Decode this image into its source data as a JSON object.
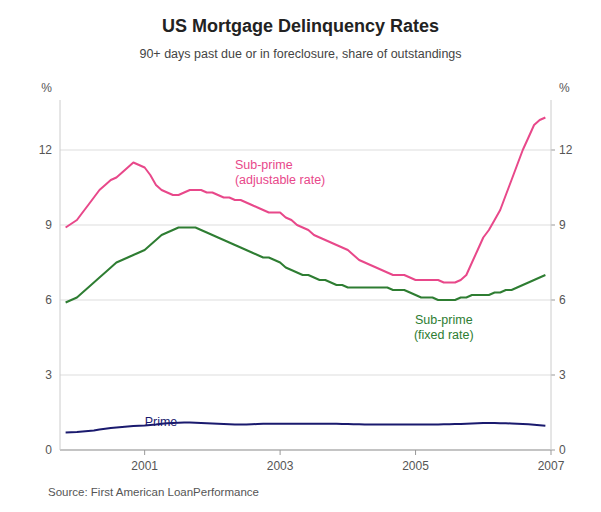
{
  "chart_data": {
    "type": "line",
    "title": "US Mortgage Delinquency Rates",
    "subtitle": "90+ days past due or in foreclosure, share of outstandings",
    "source": "Source: First American LoanPerformance",
    "ylabel": "%",
    "y2label": "%",
    "xlim": [
      1999.75,
      2007.0
    ],
    "xticks": [
      2001,
      2003,
      2005,
      2007
    ],
    "ylim": [
      0,
      14
    ],
    "yticks": [
      0,
      3,
      6,
      9,
      12
    ],
    "y2lim": [
      0,
      14
    ],
    "y2ticks": [
      0,
      3,
      6,
      9,
      12
    ],
    "grid": true,
    "x": [
      1999.833,
      2000.0,
      2000.083,
      2000.167,
      2000.25,
      2000.333,
      2000.417,
      2000.5,
      2000.583,
      2000.667,
      2000.75,
      2000.833,
      2000.917,
      2001.0,
      2001.083,
      2001.167,
      2001.25,
      2001.333,
      2001.417,
      2001.5,
      2001.583,
      2001.667,
      2001.75,
      2001.833,
      2001.917,
      2002.0,
      2002.083,
      2002.167,
      2002.25,
      2002.333,
      2002.417,
      2002.5,
      2002.583,
      2002.667,
      2002.75,
      2002.833,
      2002.917,
      2003.0,
      2003.083,
      2003.167,
      2003.25,
      2003.333,
      2003.417,
      2003.5,
      2003.583,
      2003.667,
      2003.75,
      2003.833,
      2003.917,
      2004.0,
      2004.083,
      2004.167,
      2004.25,
      2004.333,
      2004.417,
      2004.5,
      2004.583,
      2004.667,
      2004.75,
      2004.833,
      2004.917,
      2005.0,
      2005.083,
      2005.167,
      2005.25,
      2005.333,
      2005.417,
      2005.5,
      2005.583,
      2005.667,
      2005.75,
      2005.833,
      2005.917,
      2006.0,
      2006.083,
      2006.167,
      2006.25,
      2006.333,
      2006.417,
      2006.5,
      2006.583,
      2006.667,
      2006.75,
      2006.833,
      2006.917
    ],
    "series": [
      {
        "name": "Sub-prime\n(adjustable rate)",
        "color": "#e8488a",
        "values": [
          8.9,
          9.2,
          9.5,
          9.8,
          10.1,
          10.4,
          10.6,
          10.8,
          10.9,
          11.1,
          11.3,
          11.5,
          11.4,
          11.3,
          11.0,
          10.6,
          10.4,
          10.3,
          10.2,
          10.2,
          10.3,
          10.4,
          10.4,
          10.4,
          10.3,
          10.3,
          10.2,
          10.1,
          10.1,
          10.0,
          10.0,
          9.9,
          9.8,
          9.7,
          9.6,
          9.5,
          9.5,
          9.5,
          9.3,
          9.2,
          9.0,
          8.9,
          8.8,
          8.6,
          8.5,
          8.4,
          8.3,
          8.2,
          8.1,
          8.0,
          7.8,
          7.6,
          7.5,
          7.4,
          7.3,
          7.2,
          7.1,
          7.0,
          7.0,
          7.0,
          6.9,
          6.8,
          6.8,
          6.8,
          6.8,
          6.8,
          6.7,
          6.7,
          6.7,
          6.8,
          7.0,
          7.5,
          8.0,
          8.5,
          8.8,
          9.2,
          9.6,
          10.2,
          10.8,
          11.4,
          12.0,
          12.5,
          13.0,
          13.2,
          13.3
        ]
      },
      {
        "name": "Sub-prime\n(fixed rate)",
        "color": "#2e7d32",
        "values": [
          5.9,
          6.1,
          6.3,
          6.5,
          6.7,
          6.9,
          7.1,
          7.3,
          7.5,
          7.6,
          7.7,
          7.8,
          7.9,
          8.0,
          8.2,
          8.4,
          8.6,
          8.7,
          8.8,
          8.9,
          8.9,
          8.9,
          8.9,
          8.8,
          8.7,
          8.6,
          8.5,
          8.4,
          8.3,
          8.2,
          8.1,
          8.0,
          7.9,
          7.8,
          7.7,
          7.7,
          7.6,
          7.5,
          7.3,
          7.2,
          7.1,
          7.0,
          7.0,
          6.9,
          6.8,
          6.8,
          6.7,
          6.6,
          6.6,
          6.5,
          6.5,
          6.5,
          6.5,
          6.5,
          6.5,
          6.5,
          6.5,
          6.4,
          6.4,
          6.4,
          6.3,
          6.2,
          6.1,
          6.1,
          6.1,
          6.0,
          6.0,
          6.0,
          6.0,
          6.1,
          6.1,
          6.2,
          6.2,
          6.2,
          6.2,
          6.3,
          6.3,
          6.4,
          6.4,
          6.5,
          6.6,
          6.7,
          6.8,
          6.9,
          7.0
        ]
      },
      {
        "name": "Prime",
        "color": "#1a1a6e",
        "values": [
          0.7,
          0.72,
          0.74,
          0.76,
          0.78,
          0.82,
          0.85,
          0.88,
          0.9,
          0.92,
          0.94,
          0.96,
          0.97,
          0.98,
          1.0,
          1.02,
          1.05,
          1.07,
          1.08,
          1.09,
          1.1,
          1.1,
          1.09,
          1.08,
          1.07,
          1.06,
          1.05,
          1.04,
          1.03,
          1.02,
          1.02,
          1.02,
          1.03,
          1.04,
          1.05,
          1.05,
          1.05,
          1.05,
          1.05,
          1.05,
          1.05,
          1.05,
          1.05,
          1.05,
          1.05,
          1.05,
          1.05,
          1.05,
          1.04,
          1.04,
          1.03,
          1.03,
          1.02,
          1.02,
          1.02,
          1.02,
          1.02,
          1.02,
          1.02,
          1.02,
          1.02,
          1.02,
          1.02,
          1.02,
          1.02,
          1.02,
          1.03,
          1.03,
          1.04,
          1.04,
          1.05,
          1.06,
          1.07,
          1.08,
          1.08,
          1.08,
          1.07,
          1.07,
          1.06,
          1.05,
          1.04,
          1.03,
          1.01,
          0.99,
          0.97
        ]
      }
    ]
  }
}
